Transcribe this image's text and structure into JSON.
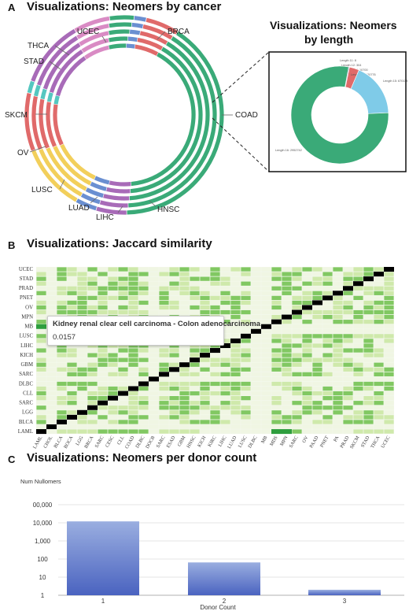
{
  "panels": {
    "A": {
      "letter": "A",
      "title": "Visualizations: Neomers by cancer",
      "inset_title_line1": "Visualizations: Neomers",
      "inset_title_line2": "by length"
    },
    "B": {
      "letter": "B",
      "title": "Visualizations: Jaccard similarity"
    },
    "C": {
      "letter": "C",
      "title": "Visualizations: Neomers per donor count"
    }
  },
  "colors": {
    "green": "#3aaa78",
    "pink": "#d98bc4",
    "purple": "#a86bb8",
    "red": "#e06a6a",
    "yellow": "#f2cf5b",
    "blue": "#6a8fd1",
    "teal": "#55c7c0",
    "lightblue": "#7fcbe8",
    "heat_dark": "#2e9e3e",
    "heat_mid": "#6cc04a",
    "heat_light": "#c8e6a0",
    "heat_pale": "#eef6e2",
    "bar_top": "#9aaee0",
    "bar_bottom": "#4a63c0"
  },
  "chart_data": [
    {
      "type": "pie",
      "subtype": "concentric-rings",
      "ring_count": 5,
      "labels": [
        "UCEC",
        "BRCA",
        "THCA",
        "STAD",
        "SKCM",
        "OV",
        "LUSC",
        "LUAD",
        "LIHC",
        "HNSC",
        "COAD"
      ],
      "segments": [
        {
          "label": "COAD",
          "color_key": "green",
          "share": 0.405
        },
        {
          "label": "HNSC",
          "color_key": "purple",
          "share": 0.05
        },
        {
          "label": "LIHC",
          "color_key": "blue",
          "share": 0.035
        },
        {
          "label": "LUAD",
          "color_key": "yellow",
          "share": 0.11
        },
        {
          "label": "LUSC",
          "color_key": "red",
          "share": 0.095
        },
        {
          "label": "OV",
          "color_key": "teal",
          "share": 0.02
        },
        {
          "label": "SKCM",
          "color_key": "purple",
          "share": 0.11
        },
        {
          "label": "STAD",
          "color_key": "pink",
          "share": 0.06
        },
        {
          "label": "THCA",
          "color_key": "green",
          "share": 0.04
        },
        {
          "label": "UCEC",
          "color_key": "blue",
          "share": 0.02
        },
        {
          "label": "BRCA",
          "color_key": "red",
          "share": 0.055
        }
      ]
    },
    {
      "type": "pie",
      "subtype": "donut",
      "title": "Visualizations: Neomers by length",
      "slices": [
        {
          "label": "Length 11",
          "value_text": "Length 11: 8",
          "value": 8,
          "color_key": "blue"
        },
        {
          "label": "Length 12",
          "value_text": "Length 12: 304",
          "value": 304,
          "color_key": "yellow"
        },
        {
          "label": "Length 13",
          "value_text": "Length 13: 10700",
          "value": 10700,
          "color_key": "purple"
        },
        {
          "label": "Length 14",
          "value_text": "Length 14: 120776",
          "value": 120776,
          "color_key": "red"
        },
        {
          "label": "Length 15",
          "value_text": "Length 15: 670118",
          "value": 670118,
          "color_key": "lightblue"
        },
        {
          "label": "Length 16",
          "value_text": "Length 16: 2952742",
          "value": 2952742,
          "color_key": "green"
        }
      ]
    },
    {
      "type": "heatmap",
      "title": "Visualizations: Jaccard similarity",
      "x_labels": [
        "LAML",
        "CHOL",
        "BLCA",
        "BOCA",
        "LGG",
        "BRCA",
        "SARC",
        "CESC",
        "CLL",
        "COAD",
        "DLBC",
        "DOCB",
        "SARC",
        "ESAD",
        "GBM",
        "HNSC",
        "KICH",
        "KIRC",
        "LIHC",
        "LUAD",
        "LUSC",
        "DLBC",
        "MB",
        "MDS",
        "MPN",
        "SARC",
        "OV",
        "PAAD",
        "PNET",
        "PA",
        "PRAD",
        "SKCM",
        "STAD",
        "THCA",
        "UCEC"
      ],
      "y_labels": [
        "LAML",
        "BLCA",
        "LGG",
        "SARC",
        "CLL",
        "DLBC",
        "SARC",
        "GBM",
        "KICH",
        "LIHC",
        "LUSC",
        "MB",
        "MPN",
        "OV",
        "PNET",
        "PRAD",
        "STAD",
        "UCEC"
      ],
      "tooltip": {
        "line1": "Kidney renal clear cell carcinoma - Colon adenocarcinoma",
        "line2": "0.0157"
      }
    },
    {
      "type": "bar",
      "title": "Visualizations: Neomers per donor count",
      "scale": "log",
      "ylabel": "Num Nullomers",
      "xlabel": "Donor Count",
      "yticks": [
        "1",
        "10",
        "100",
        "1,000",
        "10,000",
        "00,000"
      ],
      "ylim": [
        1,
        100000
      ],
      "categories": [
        "1",
        "2",
        "3"
      ],
      "values": [
        12000,
        65,
        2
      ]
    }
  ]
}
